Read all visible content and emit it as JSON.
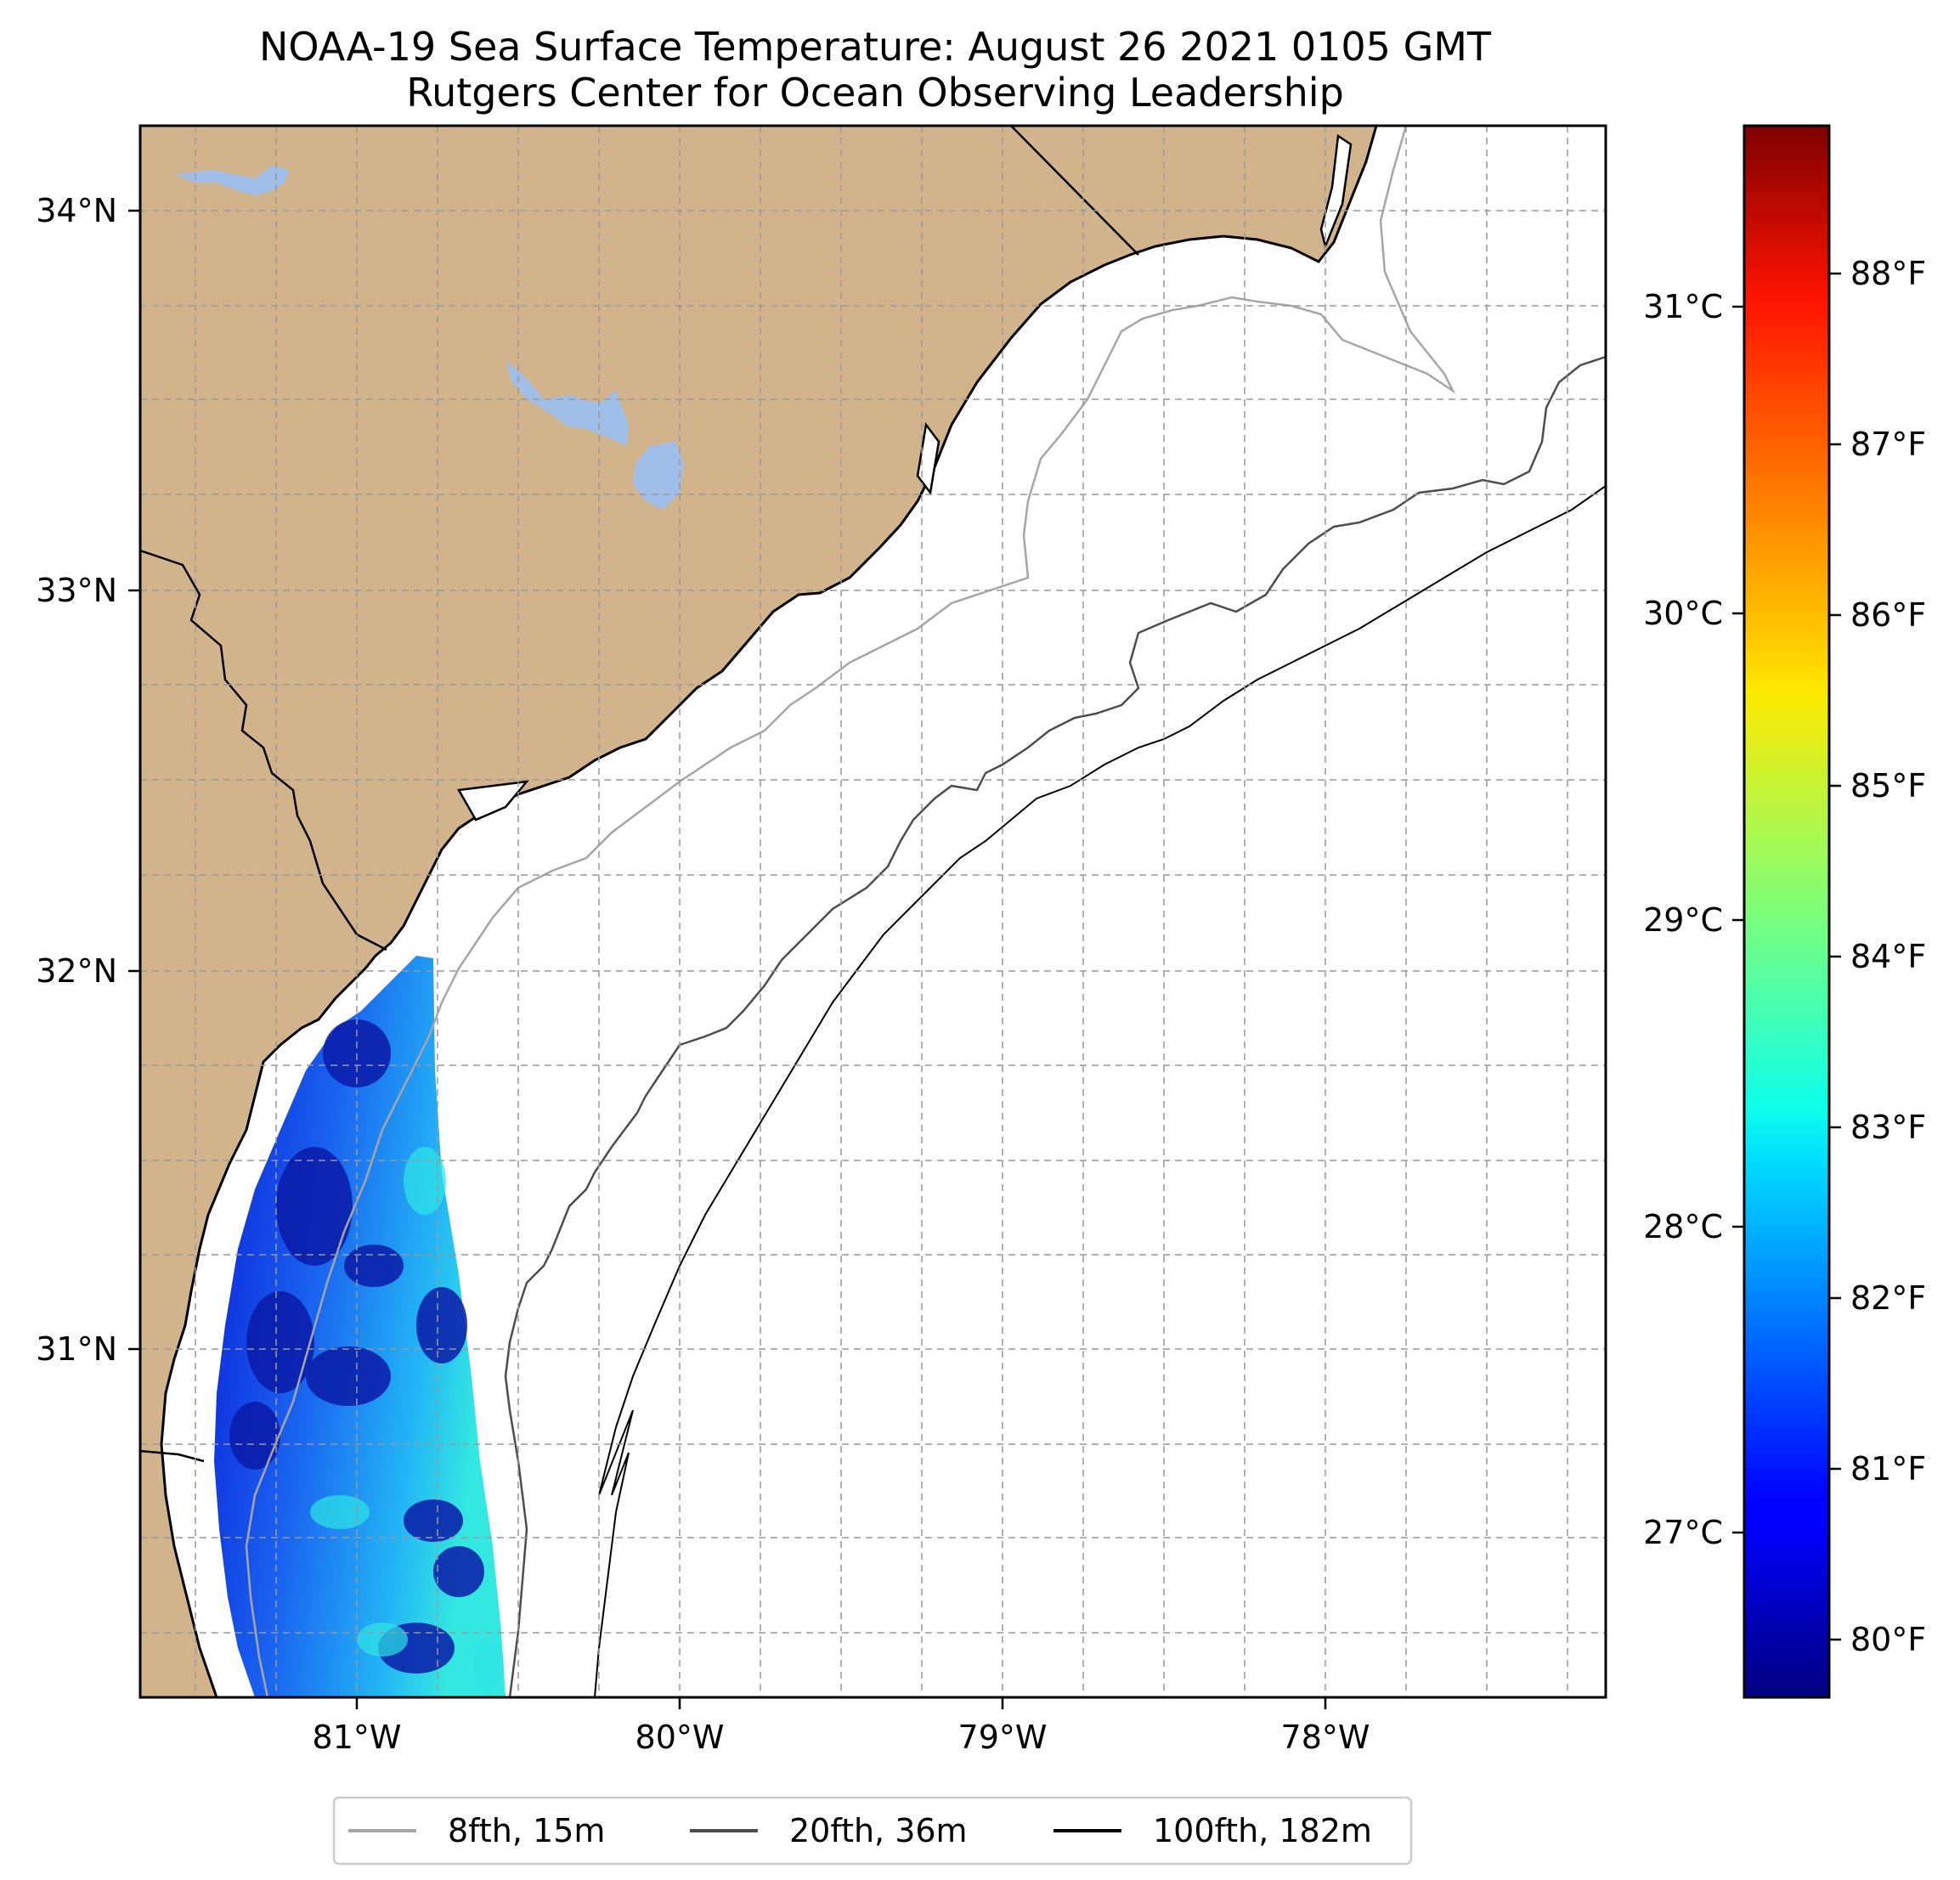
{
  "title": {
    "line1": "NOAA-19 Sea Surface Temperature: August 26 2021 0105 GMT",
    "line2": "Rutgers Center for Ocean Observing Leadership"
  },
  "map": {
    "lat_labels": [
      "34°N",
      "33°N",
      "32°N",
      "31°N"
    ],
    "lon_labels": [
      "81°W",
      "80°W",
      "79°W",
      "78°W"
    ],
    "lon_range": [
      -81.7,
      -77.2
    ],
    "lat_range": [
      30.2,
      34.2
    ],
    "colors": {
      "land": "#d2b48c",
      "lakes": "#9fbfe8",
      "ocean": "#ffffff",
      "contour_8fth": "#a6a6a6",
      "contour_20fth": "#4d4d4d",
      "contour_100fth": "#000000"
    }
  },
  "colorbar": {
    "celsius_labels": [
      "31°C",
      "30°C",
      "29°C",
      "28°C",
      "27°C"
    ],
    "fahrenheit_labels": [
      "88°F",
      "87°F",
      "86°F",
      "85°F",
      "84°F",
      "83°F",
      "82°F",
      "81°F",
      "80°F"
    ],
    "range_f": [
      79.6,
      88.8
    ],
    "colormap": "jet"
  },
  "legend": {
    "items": [
      {
        "label": "8fth, 15m",
        "color": "#a6a6a6"
      },
      {
        "label": "20fth, 36m",
        "color": "#4d4d4d"
      },
      {
        "label": "100fth, 182m",
        "color": "#000000"
      }
    ]
  }
}
